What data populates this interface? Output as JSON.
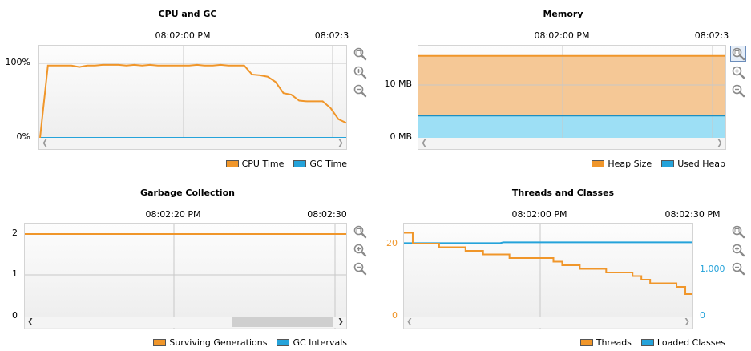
{
  "colors": {
    "orange": "#f0962a",
    "blue": "#25a3da",
    "heap_fill": "#f5c896",
    "used_fill": "#9ddff5",
    "grid": "#c8c8c8",
    "zoom_icon": "#8a8a8a"
  },
  "cpu": {
    "title": "CPU and GC",
    "time_labels": [
      "08:02:00 PM",
      "08:02:3"
    ],
    "y_labels": [
      "100%",
      "0%"
    ],
    "legend": [
      {
        "label": "CPU Time",
        "color": "#f0962a"
      },
      {
        "label": "GC Time",
        "color": "#25a3da"
      }
    ],
    "series_cpu": [
      0,
      97,
      97,
      97,
      97,
      95,
      97,
      97,
      98,
      98,
      98,
      97,
      98,
      97,
      98,
      97,
      97,
      97,
      97,
      97,
      98,
      97,
      97,
      98,
      97,
      97,
      97,
      85,
      84,
      82,
      75,
      60,
      58,
      50,
      49,
      49,
      49,
      40,
      25,
      20
    ],
    "series_gc": [
      0,
      0,
      0,
      0,
      0,
      0,
      0,
      0,
      0,
      0,
      0,
      0,
      0,
      0,
      0,
      0,
      0,
      0,
      0,
      0,
      0,
      0,
      0,
      0,
      0,
      0,
      0,
      0,
      0,
      0,
      0,
      0,
      0,
      0,
      0,
      0,
      0,
      0,
      0,
      0
    ],
    "icons": [
      "zoom-fit-icon",
      "zoom-in-icon",
      "zoom-out-icon"
    ]
  },
  "memory": {
    "title": "Memory",
    "time_labels": [
      "08:02:00 PM",
      "08:02:3"
    ],
    "y_labels": [
      "10 MB",
      "0 MB"
    ],
    "heap_size_mb": 15.5,
    "used_heap_mb": 4.2,
    "legend": [
      {
        "label": "Heap Size",
        "color": "#f0962a"
      },
      {
        "label": "Used Heap",
        "color": "#25a3da"
      }
    ],
    "icons": [
      "zoom-fit-icon",
      "zoom-in-icon",
      "zoom-out-icon"
    ]
  },
  "gc": {
    "title": "Garbage Collection",
    "time_labels": [
      "08:02:20 PM",
      "08:02:30"
    ],
    "y_labels": [
      "2",
      "1",
      "0"
    ],
    "surviving_generations": 2,
    "legend": [
      {
        "label": "Surviving Generations",
        "color": "#f0962a"
      },
      {
        "label": "GC Intervals",
        "color": "#25a3da"
      }
    ],
    "icons": [
      "zoom-fit-icon",
      "zoom-in-icon",
      "zoom-out-icon"
    ]
  },
  "threads": {
    "title": "Threads and Classes",
    "time_labels": [
      "08:02:00 PM",
      "08:02:30 PM"
    ],
    "y_left_labels": [
      "20",
      "0"
    ],
    "y_right_labels": [
      "1,000",
      "0"
    ],
    "series_threads": [
      23,
      20,
      20,
      20,
      19,
      19,
      19,
      18,
      18,
      17,
      17,
      17,
      16,
      16,
      16,
      16,
      16,
      15,
      14,
      14,
      13,
      13,
      13,
      12,
      12,
      12,
      11,
      10,
      9,
      9,
      9,
      8,
      6
    ],
    "loaded_classes": 1580,
    "legend": [
      {
        "label": "Threads",
        "color": "#f0962a"
      },
      {
        "label": "Loaded Classes",
        "color": "#25a3da"
      }
    ],
    "icons": [
      "zoom-fit-icon",
      "zoom-in-icon",
      "zoom-out-icon"
    ]
  }
}
